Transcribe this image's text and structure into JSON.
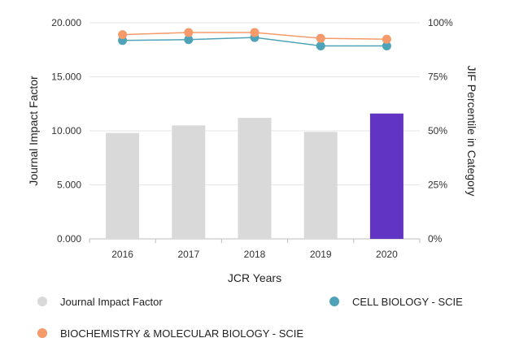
{
  "chart_data": {
    "type": "bar",
    "categories": [
      "2016",
      "2017",
      "2018",
      "2019",
      "2020"
    ],
    "xlabel": "JCR Years",
    "ylabel": "Journal Impact Factor",
    "y2label": "JIF Percentile in Category",
    "ylim": [
      0,
      20
    ],
    "y2lim": [
      0,
      100
    ],
    "y_ticks": [
      "0.000",
      "5.000",
      "10.000",
      "15.000",
      "20.000"
    ],
    "y2_ticks": [
      "0%",
      "25%",
      "50%",
      "75%",
      "100%"
    ],
    "grid": "horizontal",
    "legend_position": "bottom",
    "bars": {
      "name": "Journal Impact Factor",
      "values": [
        9.8,
        10.5,
        11.2,
        9.9,
        11.6
      ],
      "color": "#d9d9d9",
      "highlight_index": 4,
      "highlight_color": "#6234c4"
    },
    "series": [
      {
        "name": "CELL BIOLOGY - SCIE",
        "axis": "right",
        "values": [
          91.8,
          92.2,
          93.2,
          89.3,
          89.3
        ],
        "color": "#4fa3b8"
      },
      {
        "name": "BIOCHEMISTRY & MOLECULAR BIOLOGY - SCIE",
        "axis": "right",
        "values": [
          94.5,
          95.5,
          95.5,
          92.8,
          92.4
        ],
        "color": "#f59a6a"
      }
    ],
    "legend": [
      {
        "label": "Journal Impact Factor",
        "color": "#d9d9d9"
      },
      {
        "label": "CELL BIOLOGY - SCIE",
        "color": "#4fa3b8"
      },
      {
        "label": "BIOCHEMISTRY & MOLECULAR BIOLOGY - SCIE",
        "color": "#f59a6a"
      }
    ]
  }
}
